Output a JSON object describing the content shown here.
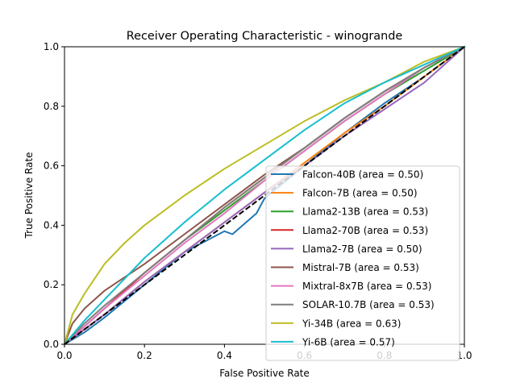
{
  "chart_data": {
    "type": "line",
    "title": "Receiver Operating Characteristic - winogrande",
    "xlabel": "False Positive Rate",
    "ylabel": "True Positive Rate",
    "xlim": [
      0,
      1
    ],
    "ylim": [
      0,
      1
    ],
    "x_ticks": [
      "0.0",
      "0.2",
      "0.4",
      "0.6",
      "0.8",
      "1.0"
    ],
    "y_ticks": [
      "0.0",
      "0.2",
      "0.4",
      "0.6",
      "0.8",
      "1.0"
    ],
    "grid": false,
    "legend_position": "lower-right",
    "diagonal": {
      "x": [
        0,
        1
      ],
      "y": [
        0,
        1
      ],
      "color": "#000000",
      "style": "dashed"
    },
    "series": [
      {
        "name": "Falcon-40B (area = 0.50)",
        "color": "#1f77b4",
        "x": [
          0,
          0.05,
          0.1,
          0.2,
          0.3,
          0.4,
          0.42,
          0.48,
          0.5,
          0.6,
          0.7,
          0.8,
          0.9,
          1.0
        ],
        "y": [
          0,
          0.04,
          0.09,
          0.2,
          0.31,
          0.38,
          0.37,
          0.44,
          0.49,
          0.6,
          0.71,
          0.81,
          0.9,
          1.0
        ]
      },
      {
        "name": "Falcon-7B (area = 0.50)",
        "color": "#ff7f0e",
        "x": [
          0,
          0.05,
          0.1,
          0.2,
          0.3,
          0.4,
          0.5,
          0.6,
          0.7,
          0.8,
          0.9,
          1.0
        ],
        "y": [
          0,
          0.05,
          0.1,
          0.21,
          0.31,
          0.41,
          0.51,
          0.61,
          0.71,
          0.8,
          0.9,
          1.0
        ]
      },
      {
        "name": "Llama2-13B (area = 0.53)",
        "color": "#2ca02c",
        "x": [
          0,
          0.05,
          0.1,
          0.2,
          0.3,
          0.4,
          0.5,
          0.6,
          0.7,
          0.8,
          0.9,
          1.0
        ],
        "y": [
          0,
          0.06,
          0.12,
          0.24,
          0.35,
          0.45,
          0.55,
          0.65,
          0.75,
          0.84,
          0.92,
          1.0
        ]
      },
      {
        "name": "Llama2-70B (area = 0.53)",
        "color": "#d62728",
        "x": [
          0,
          0.05,
          0.1,
          0.2,
          0.3,
          0.4,
          0.5,
          0.6,
          0.7,
          0.8,
          0.9,
          1.0
        ],
        "y": [
          0,
          0.06,
          0.12,
          0.24,
          0.35,
          0.46,
          0.56,
          0.66,
          0.76,
          0.85,
          0.93,
          1.0
        ]
      },
      {
        "name": "Llama2-7B (area = 0.50)",
        "color": "#9467bd",
        "x": [
          0,
          0.05,
          0.1,
          0.2,
          0.3,
          0.4,
          0.5,
          0.6,
          0.7,
          0.8,
          0.9,
          1.0
        ],
        "y": [
          0,
          0.05,
          0.1,
          0.21,
          0.31,
          0.41,
          0.51,
          0.6,
          0.7,
          0.79,
          0.88,
          1.0
        ]
      },
      {
        "name": "Mistral-7B (area = 0.53)",
        "color": "#8c564b",
        "x": [
          0,
          0.02,
          0.05,
          0.1,
          0.2,
          0.3,
          0.4,
          0.5,
          0.6,
          0.7,
          0.8,
          0.9,
          1.0
        ],
        "y": [
          0,
          0.07,
          0.12,
          0.18,
          0.27,
          0.37,
          0.47,
          0.57,
          0.66,
          0.76,
          0.85,
          0.93,
          1.0
        ]
      },
      {
        "name": "Mixtral-8x7B (area = 0.53)",
        "color": "#e377c2",
        "x": [
          0,
          0.05,
          0.1,
          0.2,
          0.3,
          0.4,
          0.5,
          0.6,
          0.7,
          0.8,
          0.9,
          1.0
        ],
        "y": [
          0,
          0.06,
          0.12,
          0.23,
          0.34,
          0.44,
          0.55,
          0.65,
          0.75,
          0.84,
          0.93,
          1.0
        ]
      },
      {
        "name": "SOLAR-10.7B (area = 0.53)",
        "color": "#7f7f7f",
        "x": [
          0,
          0.05,
          0.1,
          0.2,
          0.3,
          0.4,
          0.5,
          0.6,
          0.7,
          0.8,
          0.9,
          1.0
        ],
        "y": [
          0,
          0.07,
          0.13,
          0.24,
          0.35,
          0.46,
          0.56,
          0.66,
          0.76,
          0.85,
          0.93,
          1.0
        ]
      },
      {
        "name": "Yi-34B (area = 0.63)",
        "color": "#bcbd22",
        "x": [
          0,
          0.02,
          0.05,
          0.1,
          0.15,
          0.2,
          0.3,
          0.4,
          0.5,
          0.6,
          0.7,
          0.8,
          0.9,
          1.0
        ],
        "y": [
          0,
          0.1,
          0.17,
          0.27,
          0.34,
          0.4,
          0.5,
          0.59,
          0.67,
          0.75,
          0.82,
          0.88,
          0.95,
          1.0
        ]
      },
      {
        "name": "Yi-6B (area = 0.57)",
        "color": "#17becf",
        "x": [
          0,
          0.05,
          0.1,
          0.2,
          0.3,
          0.4,
          0.5,
          0.6,
          0.7,
          0.8,
          0.9,
          1.0
        ],
        "y": [
          0,
          0.08,
          0.15,
          0.29,
          0.41,
          0.52,
          0.62,
          0.72,
          0.81,
          0.88,
          0.94,
          1.0
        ]
      }
    ]
  }
}
